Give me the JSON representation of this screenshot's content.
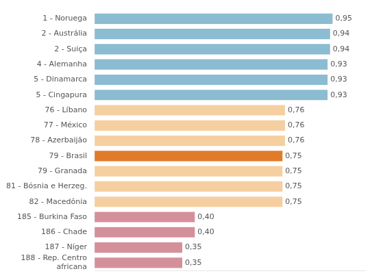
{
  "chart_data": {
    "type": "bar",
    "orientation": "horizontal",
    "categories": [
      "1 - Noruega",
      "2 - Austrália",
      "2 - Suiça",
      "4 - Alemanha",
      "5 - Dinamarca",
      "5 - Cingapura",
      "76 - Líbano",
      "77 - México",
      "78 - Azerbaijão",
      "79 - Brasil",
      "79 - Granada",
      "81 - Bósnia e Herzeg.",
      "82 - Macedônia",
      "185 - Burkina Faso",
      "186 - Chade",
      "187 - Níger",
      "188 - Rep. Centro\nafricana"
    ],
    "values": [
      0.95,
      0.94,
      0.94,
      0.93,
      0.93,
      0.93,
      0.76,
      0.76,
      0.76,
      0.75,
      0.75,
      0.75,
      0.75,
      0.4,
      0.4,
      0.35,
      0.35
    ],
    "value_labels": [
      "0,95",
      "0,94",
      "0,94",
      "0,93",
      "0,93",
      "0,93",
      "0,76",
      "0,76",
      "0,76",
      "0,75",
      "0,75",
      "0,75",
      "0,75",
      "0,40",
      "0,40",
      "0,35",
      "0,35"
    ],
    "colors": [
      "#8bbcd1",
      "#8bbcd1",
      "#8bbcd1",
      "#8bbcd1",
      "#8bbcd1",
      "#8bbcd1",
      "#f5cfa0",
      "#f5cfa0",
      "#f5cfa0",
      "#e07b2a",
      "#f5cfa0",
      "#f5cfa0",
      "#f5cfa0",
      "#d4909a",
      "#d4909a",
      "#d4909a",
      "#d4909a"
    ],
    "xlim": [
      0,
      1.08
    ],
    "data_labels": true,
    "tick_labels": "y",
    "grid": false
  }
}
